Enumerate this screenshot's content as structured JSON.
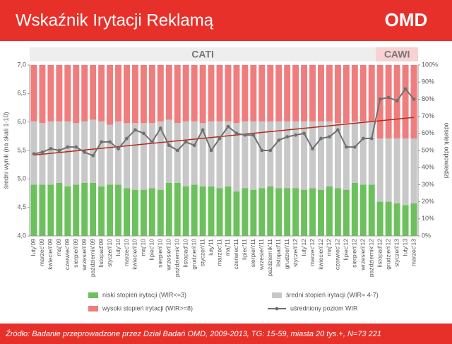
{
  "header": {
    "title": "Wskaźnik Irytacji Reklamą",
    "logo": "OMD"
  },
  "chart_data": {
    "type": "stacked-bar-line",
    "y_label": "średni wynik (na skali 1-10)",
    "y2_label": "odsetek odpowiedzi",
    "categories": [
      "luty'09",
      "marzec'09",
      "kwiecień'09",
      "maj'09",
      "czerwiec'09",
      "sierpień'09",
      "wrzesień'09",
      "październik'09",
      "listopad'09",
      "styczeń'10",
      "luty'10",
      "marzec'10",
      "kwiecień'10",
      "maj'10",
      "lipiec'10",
      "sierpień'10",
      "wrzesień'10",
      "październik'10",
      "listopad'10",
      "grudzień'10",
      "styczeń'11",
      "luty'11",
      "marzec'11",
      "maj'11",
      "czerwiec'11",
      "lipiec'11",
      "sierpień'11",
      "wrzesień'11",
      "październik'11",
      "listopad'11",
      "grudzień'11",
      "styczeń'12",
      "luty'12",
      "marzec'12",
      "kwiecień'12",
      "maj'12",
      "czerwiec'12",
      "lipiec'12",
      "sierpień'12",
      "wrzesień'12",
      "październik'12",
      "listopad'12",
      "grudzień'12",
      "styczeń'13",
      "luty'13",
      "marzec'13"
    ],
    "series": [
      {
        "name": "niski stopień irytacji (WIR<=3)",
        "color": "#6cc15c",
        "axis": "y2",
        "kind": "bar",
        "values": [
          30,
          30,
          30,
          31,
          29,
          30,
          31,
          31,
          29,
          30,
          30,
          28,
          27,
          27,
          28,
          27,
          31,
          31,
          29,
          30,
          29,
          29,
          28,
          29,
          26,
          28,
          27,
          28,
          29,
          28,
          28,
          28,
          27,
          28,
          27,
          29,
          28,
          27,
          31,
          30,
          30,
          20,
          20,
          19,
          18,
          19
        ]
      },
      {
        "name": "średni stopień irytacji (WIR= 4-7)",
        "color": "#c8c8c8",
        "axis": "y2",
        "kind": "bar",
        "values": [
          37,
          36,
          37,
          36,
          38,
          36,
          36,
          37,
          38,
          35,
          37,
          38,
          39,
          39,
          38,
          40,
          37,
          35,
          38,
          37,
          37,
          38,
          39,
          38,
          40,
          39,
          40,
          39,
          38,
          39,
          39,
          39,
          40,
          39,
          40,
          38,
          38,
          39,
          36,
          37,
          37,
          37,
          37,
          38,
          39,
          38
        ]
      },
      {
        "name": "wysoki stopień irytacji (WIR>=8)",
        "color": "#f07d7d",
        "axis": "y2",
        "kind": "bar",
        "values": [
          33,
          34,
          33,
          33,
          33,
          34,
          33,
          32,
          33,
          35,
          33,
          34,
          34,
          34,
          34,
          33,
          32,
          34,
          33,
          33,
          34,
          33,
          33,
          33,
          34,
          33,
          33,
          33,
          33,
          33,
          33,
          33,
          33,
          33,
          33,
          33,
          34,
          34,
          33,
          33,
          33,
          43,
          43,
          43,
          43,
          43
        ]
      },
      {
        "name": "uśredniony poziom WIR",
        "color": "#707070",
        "kind": "line",
        "values": [
          5.44,
          5.47,
          5.53,
          5.5,
          5.56,
          5.56,
          5.47,
          5.41,
          5.65,
          5.65,
          5.53,
          5.71,
          5.86,
          5.8,
          5.65,
          5.89,
          5.59,
          5.5,
          5.65,
          5.59,
          5.86,
          5.5,
          5.71,
          5.92,
          5.8,
          5.77,
          5.77,
          5.5,
          5.5,
          5.68,
          5.74,
          5.77,
          5.8,
          5.53,
          5.71,
          5.74,
          5.86,
          5.56,
          5.56,
          5.71,
          5.71,
          6.4,
          6.43,
          6.37,
          6.58,
          6.4
        ]
      }
    ],
    "trendline": {
      "start": 5.42,
      "end": 6.08,
      "color": "#b52a1e"
    },
    "sections": [
      {
        "label": "CATI",
        "start": "luty'09",
        "end": "październik'12"
      },
      {
        "label": "CAWI",
        "start": "listopad'12",
        "end": "marzec'13",
        "color": "#f6d2d2"
      }
    ],
    "ylim": [
      4,
      7
    ],
    "yticks": [
      {
        "value": 4,
        "label": "4,0"
      },
      {
        "value": 4.5,
        "label": "4,5"
      },
      {
        "value": 5,
        "label": "5,0"
      },
      {
        "value": 5.5,
        "label": "5,5"
      },
      {
        "value": 6,
        "label": "6,0"
      },
      {
        "value": 6.5,
        "label": "6,5"
      },
      {
        "value": 7,
        "label": "7,0"
      }
    ],
    "y2lim": [
      0,
      100
    ],
    "y2ticks": [
      {
        "value": 0,
        "label": "0%"
      },
      {
        "value": 10,
        "label": "10%"
      },
      {
        "value": 20,
        "label": "20%"
      },
      {
        "value": 30,
        "label": "30%"
      },
      {
        "value": 40,
        "label": "40%"
      },
      {
        "value": 50,
        "label": "50%"
      },
      {
        "value": 60,
        "label": "60%"
      },
      {
        "value": 70,
        "label": "70%"
      },
      {
        "value": 80,
        "label": "80%"
      },
      {
        "value": 90,
        "label": "90%"
      },
      {
        "value": 100,
        "label": "100%"
      }
    ]
  },
  "footer": {
    "source": "Źródło: Badanie przeprowadzone przez Dział Badań OMD, 2009-2013, TG: 15-59, miasta 20 tys.+, N=73 221"
  }
}
